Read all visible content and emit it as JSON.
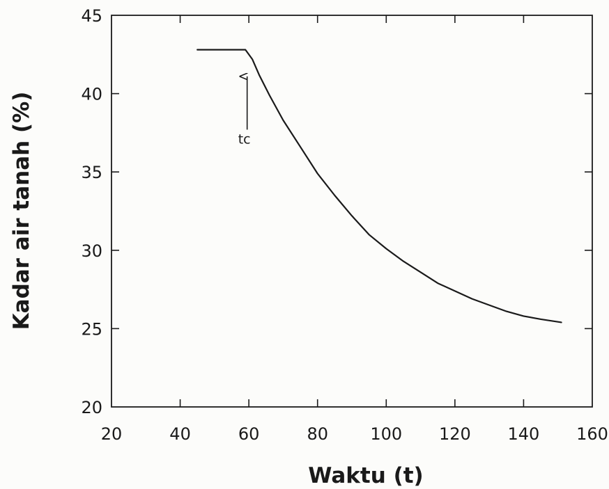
{
  "chart_data": {
    "type": "line",
    "title": "",
    "xlabel": "Waktu (t)",
    "ylabel": "Kadar air tanah (%)",
    "xlim": [
      20,
      160
    ],
    "ylim": [
      20,
      45
    ],
    "xticks": [
      20,
      40,
      60,
      80,
      100,
      120,
      140,
      160
    ],
    "yticks": [
      20,
      25,
      30,
      35,
      40,
      45
    ],
    "grid": false,
    "series": [
      {
        "x": [
          45,
          50,
          55,
          59,
          61,
          63,
          66,
          70,
          75,
          80,
          85,
          90,
          95,
          100,
          105,
          110,
          115,
          120,
          125,
          130,
          135,
          140,
          145,
          151
        ],
        "y": [
          42.8,
          42.8,
          42.8,
          42.8,
          42.2,
          41.2,
          39.9,
          38.3,
          36.6,
          34.9,
          33.5,
          32.2,
          31.0,
          30.1,
          29.3,
          28.6,
          27.9,
          27.4,
          26.9,
          26.5,
          26.1,
          25.8,
          25.6,
          25.4
        ]
      }
    ],
    "annotations": [
      {
        "text": "tc",
        "x": 59.5,
        "y_tip": 41.1,
        "y_tail": 37.7
      }
    ]
  }
}
